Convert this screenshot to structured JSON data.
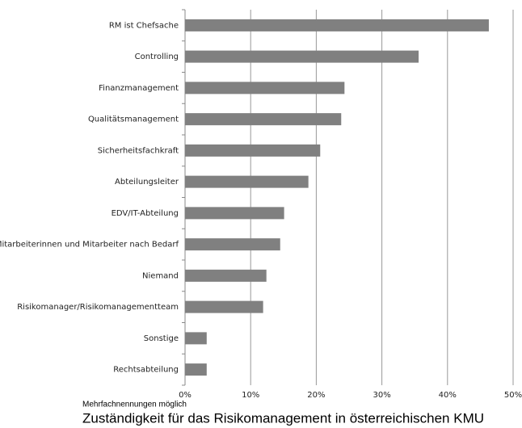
{
  "chart_data": {
    "type": "barh",
    "title": "Zuständigkeit für das Risikomanagement in österreichischen KMU",
    "note": "Mehrfachnennungen möglich",
    "categories": [
      "RM ist Chefsache",
      "Controlling",
      "Finanzmanagement",
      "Qualitätsmanagement",
      "Sicherheitsfachkraft",
      "Abteilungsleiter",
      "EDV/IT-Abteilung",
      "Mitarbeiterinnen und Mitarbeiter nach Bedarf",
      "Niemand",
      "Risikomanager/Risikomanagementteam",
      "Sonstige",
      "Rechtsabteilung"
    ],
    "values": [
      46.3,
      35.6,
      24.3,
      23.8,
      20.6,
      18.8,
      15.1,
      14.5,
      12.4,
      11.9,
      3.3,
      3.3
    ],
    "color": "#808080",
    "xlim": [
      0,
      50
    ],
    "xticks": [
      {
        "value": 0,
        "label": "0%"
      },
      {
        "value": 10,
        "label": "10%"
      },
      {
        "value": 20,
        "label": "20%"
      },
      {
        "value": 30,
        "label": "30%"
      },
      {
        "value": 40,
        "label": "40%"
      },
      {
        "value": 50,
        "label": "50%"
      }
    ],
    "grid": true
  }
}
